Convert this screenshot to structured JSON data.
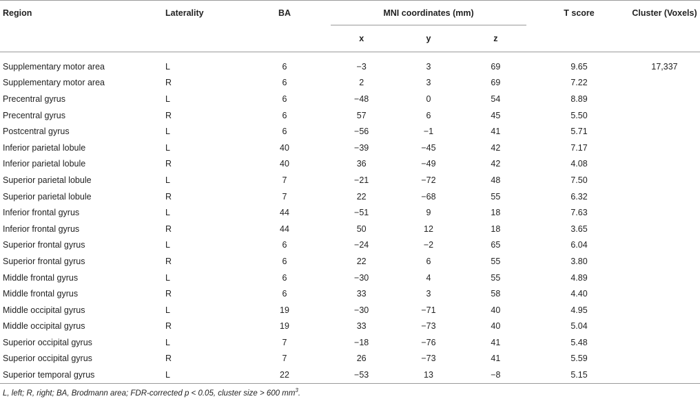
{
  "headers": {
    "region": "Region",
    "laterality": "Laterality",
    "ba": "BA",
    "mni": "MNI coordinates (mm)",
    "t_score": "T score",
    "cluster": "Cluster (Voxels)",
    "x": "x",
    "y": "y",
    "z": "z"
  },
  "rows": [
    {
      "region": "Supplementary motor area",
      "lat": "L",
      "ba": "6",
      "x": "−3",
      "y": "3",
      "z": "69",
      "t": "9.65",
      "cluster": "17,337"
    },
    {
      "region": "Supplementary motor area",
      "lat": "R",
      "ba": "6",
      "x": "2",
      "y": "3",
      "z": "69",
      "t": "7.22",
      "cluster": ""
    },
    {
      "region": "Precentral gyrus",
      "lat": "L",
      "ba": "6",
      "x": "−48",
      "y": "0",
      "z": "54",
      "t": "8.89",
      "cluster": ""
    },
    {
      "region": "Precentral gyrus",
      "lat": "R",
      "ba": "6",
      "x": "57",
      "y": "6",
      "z": "45",
      "t": "5.50",
      "cluster": ""
    },
    {
      "region": "Postcentral gyrus",
      "lat": "L",
      "ba": "6",
      "x": "−56",
      "y": "−1",
      "z": "41",
      "t": "5.71",
      "cluster": ""
    },
    {
      "region": "Inferior parietal lobule",
      "lat": "L",
      "ba": "40",
      "x": "−39",
      "y": "−45",
      "z": "42",
      "t": "7.17",
      "cluster": ""
    },
    {
      "region": "Inferior parietal lobule",
      "lat": "R",
      "ba": "40",
      "x": "36",
      "y": "−49",
      "z": "42",
      "t": "4.08",
      "cluster": ""
    },
    {
      "region": "Superior parietal lobule",
      "lat": "L",
      "ba": "7",
      "x": "−21",
      "y": "−72",
      "z": "48",
      "t": "7.50",
      "cluster": ""
    },
    {
      "region": "Superior parietal lobule",
      "lat": "R",
      "ba": "7",
      "x": "22",
      "y": "−68",
      "z": "55",
      "t": "6.32",
      "cluster": ""
    },
    {
      "region": "Inferior frontal gyrus",
      "lat": "L",
      "ba": "44",
      "x": "−51",
      "y": "9",
      "z": "18",
      "t": "7.63",
      "cluster": ""
    },
    {
      "region": "Inferior frontal gyrus",
      "lat": "R",
      "ba": "44",
      "x": "50",
      "y": "12",
      "z": "18",
      "t": "3.65",
      "cluster": ""
    },
    {
      "region": "Superior frontal gyrus",
      "lat": "L",
      "ba": "6",
      "x": "−24",
      "y": "−2",
      "z": "65",
      "t": "6.04",
      "cluster": ""
    },
    {
      "region": "Superior frontal gyrus",
      "lat": "R",
      "ba": "6",
      "x": "22",
      "y": "6",
      "z": "55",
      "t": "3.80",
      "cluster": ""
    },
    {
      "region": "Middle frontal gyrus",
      "lat": "L",
      "ba": "6",
      "x": "−30",
      "y": "4",
      "z": "55",
      "t": "4.89",
      "cluster": ""
    },
    {
      "region": "Middle frontal gyrus",
      "lat": "R",
      "ba": "6",
      "x": "33",
      "y": "3",
      "z": "58",
      "t": "4.40",
      "cluster": ""
    },
    {
      "region": "Middle occipital gyrus",
      "lat": "L",
      "ba": "19",
      "x": "−30",
      "y": "−71",
      "z": "40",
      "t": "4.95",
      "cluster": ""
    },
    {
      "region": "Middle occipital gyrus",
      "lat": "R",
      "ba": "19",
      "x": "33",
      "y": "−73",
      "z": "40",
      "t": "5.04",
      "cluster": ""
    },
    {
      "region": "Superior occipital gyrus",
      "lat": "L",
      "ba": "7",
      "x": "−18",
      "y": "−76",
      "z": "41",
      "t": "5.48",
      "cluster": ""
    },
    {
      "region": "Superior occipital gyrus",
      "lat": "R",
      "ba": "7",
      "x": "26",
      "y": "−73",
      "z": "41",
      "t": "5.59",
      "cluster": ""
    },
    {
      "region": "Superior temporal gyrus",
      "lat": "L",
      "ba": "22",
      "x": "−53",
      "y": "13",
      "z": "−8",
      "t": "5.15",
      "cluster": ""
    }
  ],
  "footnote": {
    "text": "L, left; R, right; BA, Brodmann area; FDR-corrected p < 0.05, cluster size > 600 mm",
    "sup": "3",
    "end": "."
  }
}
